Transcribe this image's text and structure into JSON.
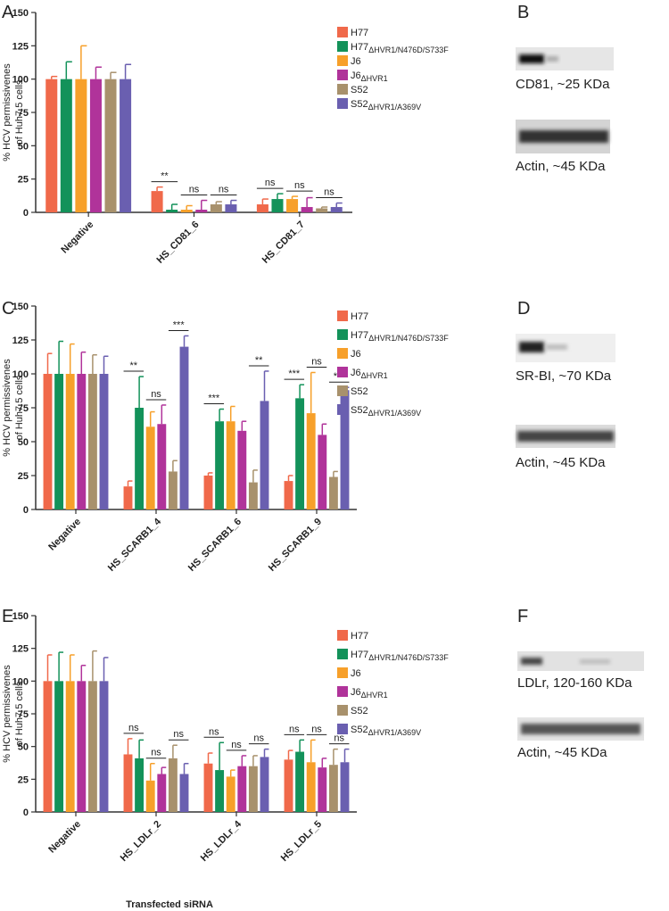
{
  "panel_labels": [
    "A",
    "B",
    "C",
    "D",
    "E",
    "F"
  ],
  "blots": [
    {
      "labels": [
        "CD81, ~25 KDa",
        "Actin, ~45 KDa"
      ]
    },
    {
      "labels": [
        "SR-BI, ~70 KDa",
        "Actin, ~45 KDa"
      ]
    },
    {
      "labels": [
        "LDLr, 120-160 KDa",
        "Actin, ~45 KDa"
      ]
    }
  ],
  "chart_data": [
    {
      "type": "bar",
      "ylabel": [
        "% HCV permissivenes",
        "of Huh7.5 cells"
      ],
      "categories": [
        "Negative",
        "HS_CD81_6",
        "HS_CD81_7"
      ],
      "ylim": [
        0,
        150
      ],
      "yticks": [
        0,
        25,
        50,
        75,
        100,
        125,
        150
      ],
      "series": [
        {
          "name": "H77",
          "color": "#f0694a",
          "values": [
            100,
            16,
            6
          ],
          "errors": [
            2,
            3,
            4
          ]
        },
        {
          "name": "H77ΔHVR1/N476D/S733F",
          "color": "#13925a",
          "values": [
            100,
            2,
            10
          ],
          "errors": [
            13,
            4,
            4
          ]
        },
        {
          "name": "J6",
          "color": "#f7a02a",
          "values": [
            100,
            2,
            10
          ],
          "errors": [
            25,
            3,
            2
          ]
        },
        {
          "name": "J6ΔHVR1",
          "color": "#b0339a",
          "values": [
            100,
            2,
            4
          ],
          "errors": [
            9,
            7,
            7
          ]
        },
        {
          "name": "S52",
          "color": "#a8916c",
          "values": [
            100,
            6,
            3
          ],
          "errors": [
            5,
            2,
            1
          ]
        },
        {
          "name": "S52ΔHVR1/A369V",
          "color": "#6a5fb0",
          "values": [
            100,
            6,
            4
          ],
          "errors": [
            11,
            3,
            3
          ]
        }
      ],
      "significance": [
        null,
        [
          "**",
          "ns",
          "ns"
        ],
        [
          "ns",
          "ns",
          "ns"
        ]
      ]
    },
    {
      "type": "bar",
      "ylabel": [
        "% HCV permissivenes",
        "of Huh7.5 cells"
      ],
      "categories": [
        "Negative",
        "HS_SCARB1_4",
        "HS_SCARB1_6",
        "HS_SCARB1_9"
      ],
      "ylim": [
        0,
        150
      ],
      "yticks": [
        0,
        25,
        50,
        75,
        100,
        125,
        150
      ],
      "series": [
        {
          "name": "H77",
          "color": "#f0694a",
          "values": [
            100,
            17,
            25,
            21
          ],
          "errors": [
            15,
            4,
            2,
            4
          ]
        },
        {
          "name": "H77ΔHVR1/N476D/S733F",
          "color": "#13925a",
          "values": [
            100,
            75,
            65,
            82
          ],
          "errors": [
            24,
            23,
            9,
            10
          ]
        },
        {
          "name": "J6",
          "color": "#f7a02a",
          "values": [
            100,
            61,
            65,
            71
          ],
          "errors": [
            22,
            11,
            11,
            30
          ]
        },
        {
          "name": "J6ΔHVR1",
          "color": "#b0339a",
          "values": [
            100,
            63,
            58,
            55
          ],
          "errors": [
            16,
            14,
            7,
            8
          ]
        },
        {
          "name": "S52",
          "color": "#a8916c",
          "values": [
            100,
            28,
            20,
            24
          ],
          "errors": [
            14,
            8,
            9,
            4
          ]
        },
        {
          "name": "S52ΔHVR1/A369V",
          "color": "#6a5fb0",
          "values": [
            100,
            120,
            80,
            88
          ],
          "errors": [
            13,
            8,
            22,
            2
          ]
        }
      ],
      "significance": [
        null,
        [
          "**",
          "ns",
          "***"
        ],
        [
          "***",
          null,
          "**"
        ],
        [
          "***",
          "ns",
          "***"
        ]
      ]
    },
    {
      "type": "bar",
      "ylabel": [
        "% HCV permissivenes",
        "of Huh7.5 cells"
      ],
      "xlabel": "Transfected siRNA",
      "categories": [
        "Negative",
        "HS_LDLr_2",
        "HS_LDLr_4",
        "HS_LDLr_5"
      ],
      "ylim": [
        0,
        150
      ],
      "yticks": [
        0,
        25,
        50,
        75,
        100,
        125,
        150
      ],
      "series": [
        {
          "name": "H77",
          "color": "#f0694a",
          "values": [
            100,
            44,
            37,
            40
          ],
          "errors": [
            20,
            12,
            8,
            7
          ]
        },
        {
          "name": "H77ΔHVR1/N476D/S733F",
          "color": "#13925a",
          "values": [
            100,
            41,
            32,
            46
          ],
          "errors": [
            22,
            14,
            21,
            9
          ]
        },
        {
          "name": "J6",
          "color": "#f7a02a",
          "values": [
            100,
            24,
            27,
            38
          ],
          "errors": [
            20,
            13,
            5,
            17
          ]
        },
        {
          "name": "J6ΔHVR1",
          "color": "#b0339a",
          "values": [
            100,
            29,
            35,
            34
          ],
          "errors": [
            12,
            5,
            8,
            7
          ]
        },
        {
          "name": "S52",
          "color": "#a8916c",
          "values": [
            100,
            41,
            35,
            36
          ],
          "errors": [
            23,
            10,
            8,
            12
          ]
        },
        {
          "name": "S52ΔHVR1/A369V",
          "color": "#6a5fb0",
          "values": [
            100,
            29,
            42,
            38
          ],
          "errors": [
            18,
            8,
            6,
            10
          ]
        }
      ],
      "significance": [
        null,
        [
          "ns",
          "ns",
          "ns"
        ],
        [
          "ns",
          "ns",
          "ns"
        ],
        [
          "ns",
          "ns",
          "ns"
        ]
      ]
    }
  ]
}
